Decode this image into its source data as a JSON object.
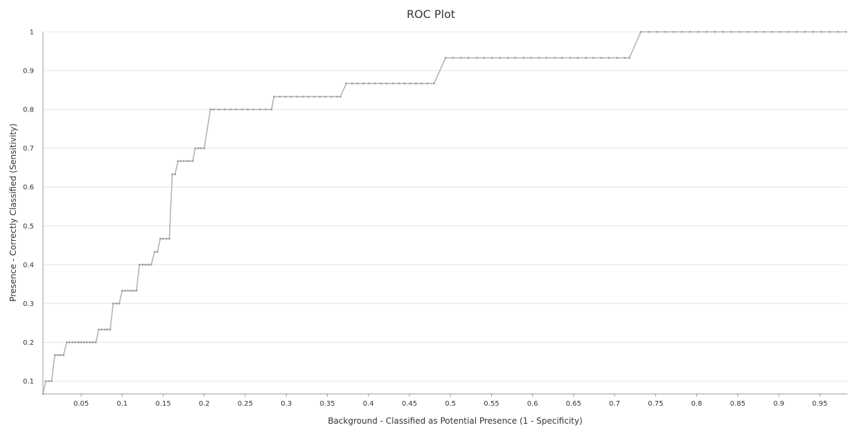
{
  "chart_data": {
    "type": "line",
    "title": "ROC Plot",
    "xlabel": "Background - Classified as Potential Presence (1 - Specificity)",
    "ylabel": "Presence - Correctly Classified (Sensitivity)",
    "xlim": [
      0.0035,
      0.9835
    ],
    "ylim": [
      0.067,
      1.0
    ],
    "xticks": [
      0.05,
      0.1,
      0.15,
      0.2,
      0.25,
      0.3,
      0.35,
      0.4,
      0.45,
      0.5,
      0.55,
      0.6,
      0.65,
      0.7,
      0.75,
      0.8,
      0.85,
      0.9,
      0.95
    ],
    "xtick_labels": [
      "0.05",
      "0.1",
      "0.15",
      "0.2",
      "0.25",
      "0.3",
      "0.35",
      "0.4",
      "0.45",
      "0.5",
      "0.55",
      "0.6",
      "0.65",
      "0.7",
      "0.75",
      "0.8",
      "0.85",
      "0.9",
      "0.95"
    ],
    "yticks": [
      0.1,
      0.2,
      0.3,
      0.4,
      0.5,
      0.6,
      0.7,
      0.8,
      0.9,
      1.0
    ],
    "ytick_labels": [
      "0.1",
      "0.2",
      "0.3",
      "0.4",
      "0.5",
      "0.6",
      "0.7",
      "0.8",
      "0.9",
      "1"
    ],
    "grid": "horizontal",
    "line_color": "#b3b3b3",
    "marker_color": "#9e9e9e",
    "series": [
      {
        "x": [
          0.0035,
          0.007,
          0.0105,
          0.014,
          0.018,
          0.0215,
          0.025,
          0.0285,
          0.0325,
          0.036,
          0.0395,
          0.043,
          0.047,
          0.05,
          0.0535,
          0.057,
          0.061,
          0.0645,
          0.068,
          0.0715,
          0.075,
          0.079,
          0.082,
          0.0855,
          0.089,
          0.093,
          0.0965,
          0.1,
          0.1035,
          0.107,
          0.111,
          0.114,
          0.1175,
          0.121,
          0.125,
          0.1285,
          0.132,
          0.1355,
          0.1395,
          0.143,
          0.1465,
          0.15,
          0.154,
          0.1575,
          0.161,
          0.1645,
          0.168,
          0.1715,
          0.175,
          0.179,
          0.182,
          0.186,
          0.189,
          0.193,
          0.196,
          0.2,
          0.2075,
          0.211,
          0.218,
          0.225,
          0.232,
          0.239,
          0.246,
          0.253,
          0.26,
          0.268,
          0.275,
          0.282,
          0.285,
          0.292,
          0.299,
          0.306,
          0.313,
          0.32,
          0.327,
          0.334,
          0.341,
          0.348,
          0.355,
          0.362,
          0.366,
          0.373,
          0.38,
          0.387,
          0.394,
          0.401,
          0.408,
          0.415,
          0.422,
          0.43,
          0.437,
          0.444,
          0.451,
          0.458,
          0.465,
          0.472,
          0.48,
          0.494,
          0.503,
          0.513,
          0.522,
          0.532,
          0.541,
          0.551,
          0.56,
          0.57,
          0.579,
          0.589,
          0.598,
          0.608,
          0.617,
          0.627,
          0.636,
          0.646,
          0.655,
          0.665,
          0.674,
          0.684,
          0.693,
          0.703,
          0.712,
          0.718,
          0.732,
          0.742,
          0.752,
          0.762,
          0.772,
          0.782,
          0.792,
          0.802,
          0.812,
          0.822,
          0.832,
          0.842,
          0.852,
          0.862,
          0.872,
          0.882,
          0.892,
          0.902,
          0.912,
          0.922,
          0.932,
          0.942,
          0.952,
          0.962,
          0.972,
          0.982
        ],
        "y": [
          0.067,
          0.1,
          0.1,
          0.1,
          0.167,
          0.167,
          0.167,
          0.167,
          0.2,
          0.2,
          0.2,
          0.2,
          0.2,
          0.2,
          0.2,
          0.2,
          0.2,
          0.2,
          0.2,
          0.233,
          0.233,
          0.233,
          0.233,
          0.233,
          0.3,
          0.3,
          0.3,
          0.333,
          0.333,
          0.333,
          0.333,
          0.333,
          0.333,
          0.4,
          0.4,
          0.4,
          0.4,
          0.4,
          0.433,
          0.433,
          0.467,
          0.467,
          0.467,
          0.467,
          0.633,
          0.633,
          0.667,
          0.667,
          0.667,
          0.667,
          0.667,
          0.667,
          0.7,
          0.7,
          0.7,
          0.7,
          0.8,
          0.8,
          0.8,
          0.8,
          0.8,
          0.8,
          0.8,
          0.8,
          0.8,
          0.8,
          0.8,
          0.8,
          0.833,
          0.833,
          0.833,
          0.833,
          0.833,
          0.833,
          0.833,
          0.833,
          0.833,
          0.833,
          0.833,
          0.833,
          0.833,
          0.867,
          0.867,
          0.867,
          0.867,
          0.867,
          0.867,
          0.867,
          0.867,
          0.867,
          0.867,
          0.867,
          0.867,
          0.867,
          0.867,
          0.867,
          0.867,
          0.933,
          0.933,
          0.933,
          0.933,
          0.933,
          0.933,
          0.933,
          0.933,
          0.933,
          0.933,
          0.933,
          0.933,
          0.933,
          0.933,
          0.933,
          0.933,
          0.933,
          0.933,
          0.933,
          0.933,
          0.933,
          0.933,
          0.933,
          0.933,
          0.933,
          1.0,
          1.0,
          1.0,
          1.0,
          1.0,
          1.0,
          1.0,
          1.0,
          1.0,
          1.0,
          1.0,
          1.0,
          1.0,
          1.0,
          1.0,
          1.0,
          1.0,
          1.0,
          1.0,
          1.0,
          1.0,
          1.0,
          1.0,
          1.0,
          1.0,
          1.0
        ]
      }
    ]
  }
}
